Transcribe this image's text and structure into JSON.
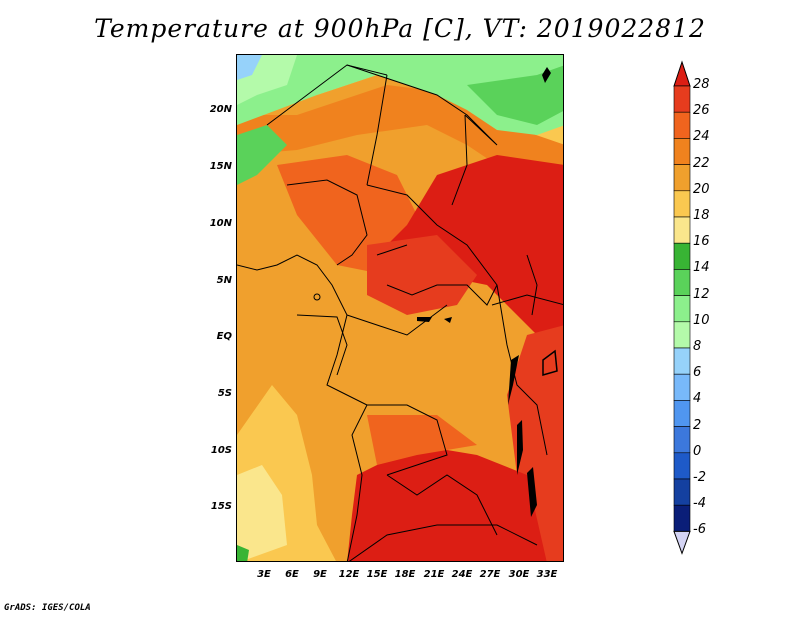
{
  "title": "Temperature at 900hPa [C], VT: 2019022812",
  "credit": "GrADS: IGES/COLA",
  "lat_labels": [
    "20N",
    "15N",
    "10N",
    "5N",
    "EQ",
    "5S",
    "10S",
    "15S"
  ],
  "lon_labels": [
    "3E",
    "6E",
    "9E",
    "12E",
    "15E",
    "18E",
    "21E",
    "24E",
    "27E",
    "30E",
    "33E"
  ],
  "colorbar": {
    "levels": [
      "28",
      "26",
      "24",
      "22",
      "20",
      "18",
      "16",
      "14",
      "12",
      "10",
      "8",
      "6",
      "4",
      "2",
      "0",
      "-2",
      "-4",
      "-6"
    ],
    "colors": [
      "#dc1e14",
      "#e63c1e",
      "#f0641e",
      "#f0821e",
      "#f0a02d",
      "#fac850",
      "#fae68c",
      "#38b434",
      "#5ad25a",
      "#8cf08c",
      "#b4faaa",
      "#96d2fa",
      "#78b9fa",
      "#5096f0",
      "#3c78dc",
      "#1e5ac8",
      "#1440a0",
      "#0a1e78"
    ]
  }
}
